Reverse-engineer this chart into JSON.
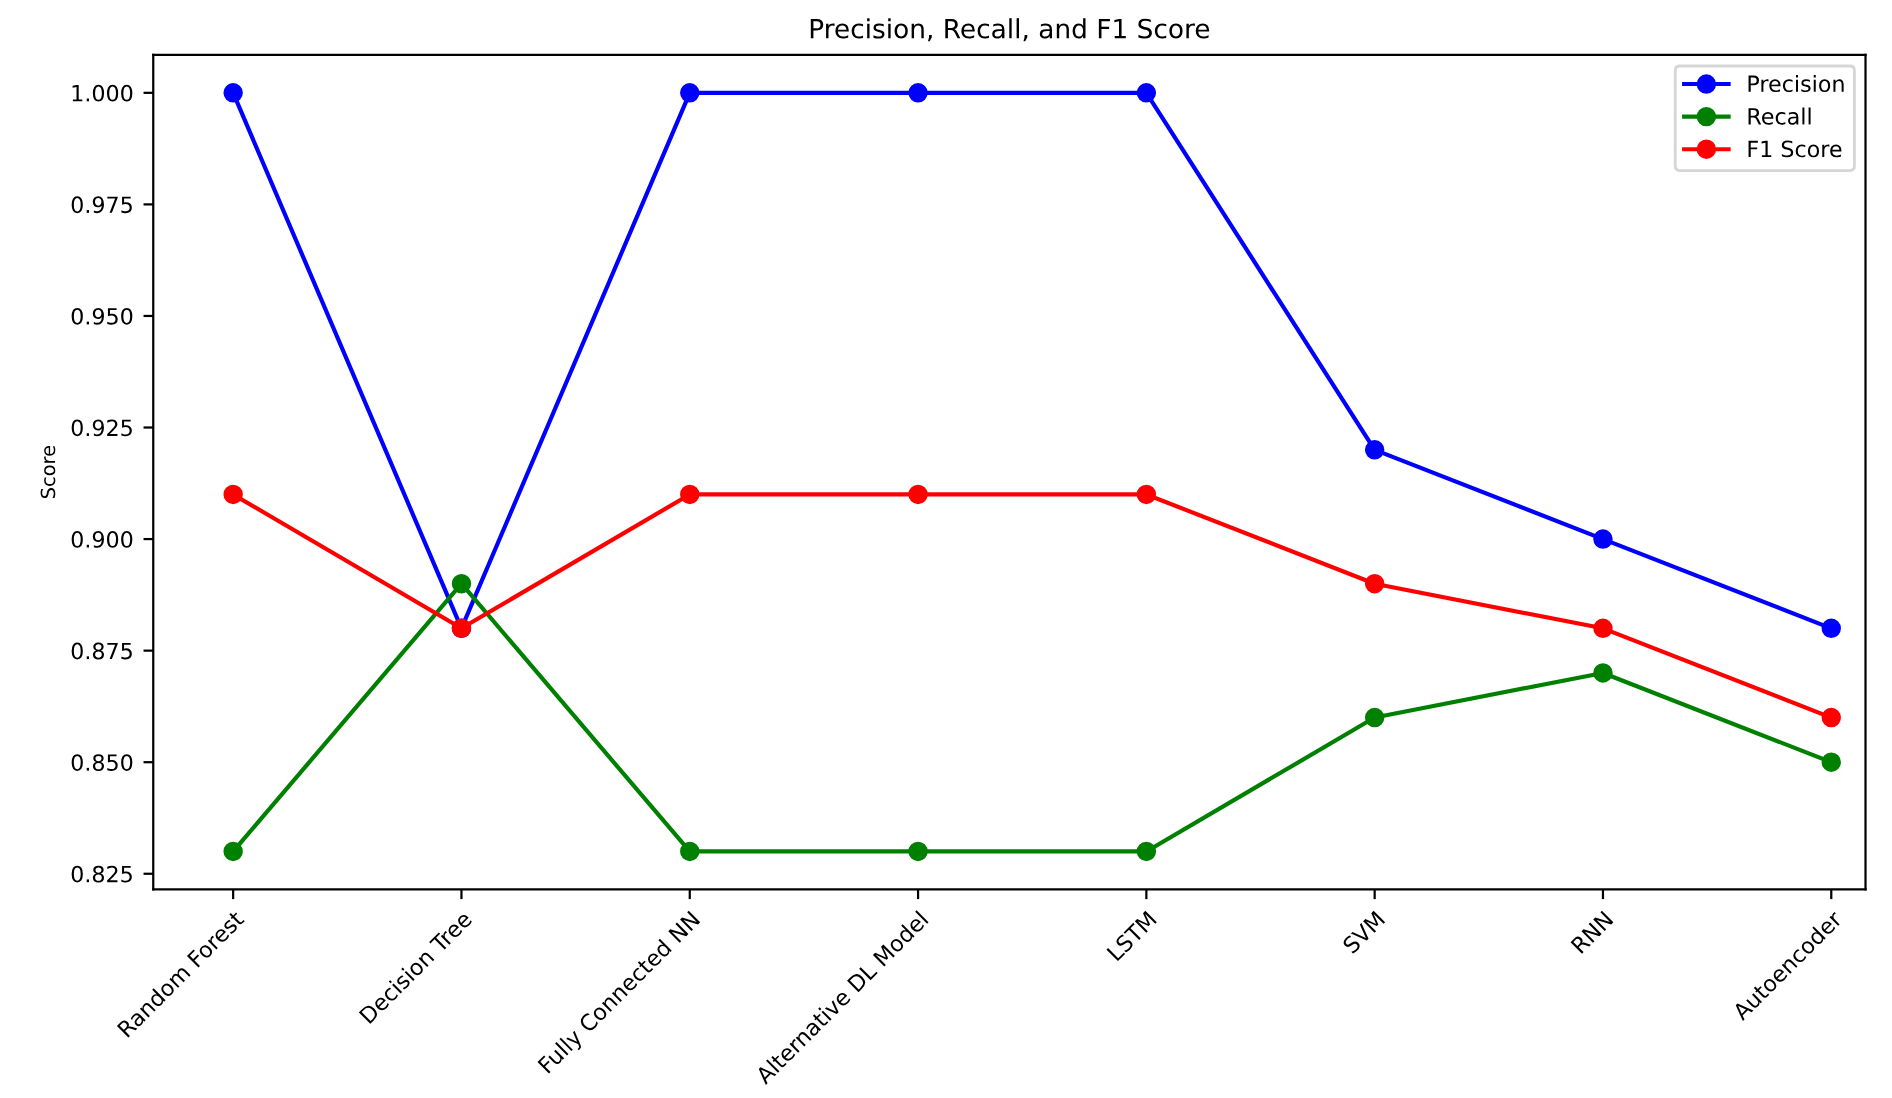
{
  "chart_data": {
    "type": "line",
    "title": "Precision, Recall, and F1 Score",
    "ylabel": "Score",
    "categories": [
      "Random Forest",
      "Decision Tree",
      "Fully Connected NN",
      "Alternative DL Model",
      "LSTM",
      "SVM",
      "RNN",
      "Autoencoder"
    ],
    "series": [
      {
        "name": "Precision",
        "color": "#0000ff",
        "values": [
          1.0,
          0.88,
          1.0,
          1.0,
          1.0,
          0.92,
          0.9,
          0.88
        ]
      },
      {
        "name": "Recall",
        "color": "#008000",
        "values": [
          0.83,
          0.89,
          0.83,
          0.83,
          0.83,
          0.86,
          0.87,
          0.85
        ]
      },
      {
        "name": "F1 Score",
        "color": "#ff0000",
        "values": [
          0.91,
          0.88,
          0.91,
          0.91,
          0.91,
          0.89,
          0.88,
          0.86
        ]
      }
    ],
    "ylim": [
      0.8215,
      1.0085
    ],
    "yticks": [
      {
        "value": 0.825,
        "label": "0.825"
      },
      {
        "value": 0.85,
        "label": "0.850"
      },
      {
        "value": 0.875,
        "label": "0.875"
      },
      {
        "value": 0.9,
        "label": "0.900"
      },
      {
        "value": 0.925,
        "label": "0.925"
      },
      {
        "value": 0.95,
        "label": "0.950"
      },
      {
        "value": 0.975,
        "label": "0.975"
      },
      {
        "value": 1.0,
        "label": "1.000"
      }
    ],
    "marker": "circle",
    "line_style": "solid",
    "grid": false,
    "legend": "top right"
  }
}
